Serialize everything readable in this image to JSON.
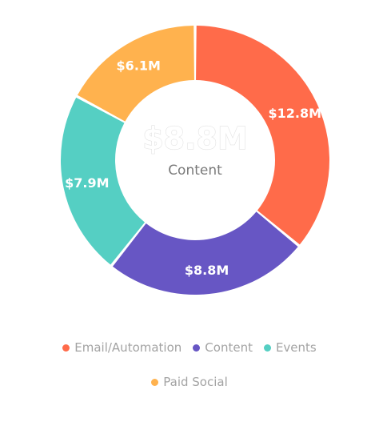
{
  "chart_data": {
    "type": "pie",
    "center_value": "$8.8M",
    "center_label": "Content",
    "categories": [
      "Email/Automation",
      "Content",
      "Events",
      "Paid Social"
    ],
    "values": [
      12.8,
      8.8,
      7.9,
      6.1
    ],
    "value_labels": [
      "$12.8M",
      "$8.8M",
      "$7.9M",
      "$6.1M"
    ],
    "colors": [
      "#ff6b4a",
      "#6756c4",
      "#55cfc3",
      "#ffb24e"
    ],
    "legend_position": "bottom",
    "legend": [
      {
        "label": "Email/Automation",
        "color": "#ff6b4a"
      },
      {
        "label": "Content",
        "color": "#6756c4"
      },
      {
        "label": "Events",
        "color": "#55cfc3"
      },
      {
        "label": "Paid Social",
        "color": "#ffb24e"
      }
    ]
  }
}
